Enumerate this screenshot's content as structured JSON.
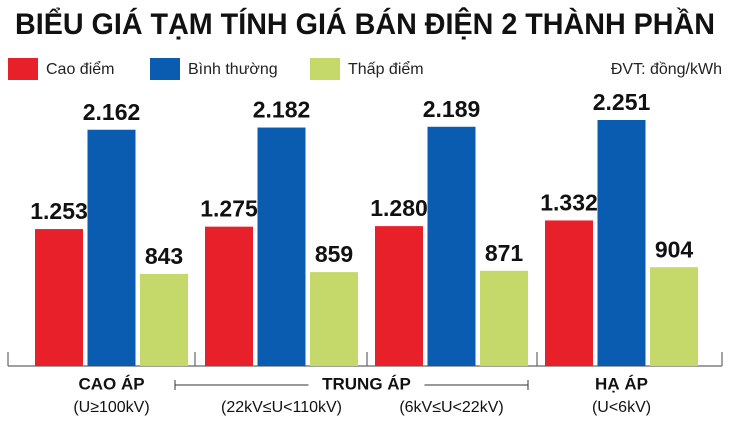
{
  "chart_data": {
    "type": "bar",
    "title": "BIỂU GIÁ TẠM TÍNH GIÁ BÁN ĐIỆN 2 THÀNH PHẦN",
    "unit_note": "ĐVT: đồng/kWh",
    "categories": [
      "(U≥100kV)",
      "(22kV≤U<110kV)",
      "(6kV≤U<22kV)",
      "(U<6kV)"
    ],
    "group_labels": [
      "CAO ÁP",
      "TRUNG ÁP",
      null,
      "HẠ ÁP"
    ],
    "series": [
      {
        "name": "Cao điểm",
        "color": "#e8202a",
        "values": [
          1253,
          1275,
          1280,
          1332
        ],
        "value_labels": [
          "1.253",
          "1.275",
          "1.280",
          "1.332"
        ]
      },
      {
        "name": "Bình thường",
        "color": "#0a5cb0",
        "values": [
          2162,
          2182,
          2189,
          2251
        ],
        "value_labels": [
          "2.162",
          "2.182",
          "2.189",
          "2.251"
        ]
      },
      {
        "name": "Thấp điểm",
        "color": "#c5d96a",
        "values": [
          843,
          859,
          871,
          904
        ],
        "value_labels": [
          "843",
          "859",
          "871",
          "904"
        ]
      }
    ]
  }
}
